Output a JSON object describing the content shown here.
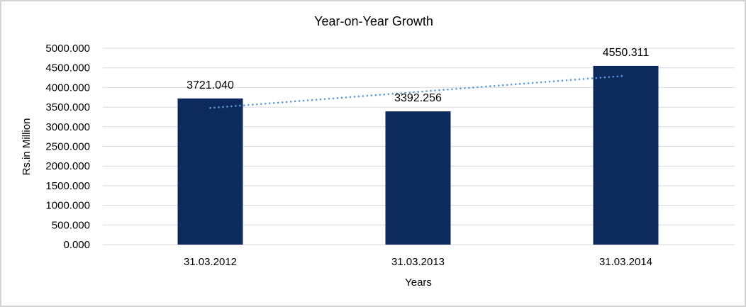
{
  "frame": {
    "background": "#FFFFFF",
    "border_color": "#D3D3D3"
  },
  "chart_data": {
    "type": "bar",
    "title": "Year-on-Year Growth",
    "xlabel": "Years",
    "ylabel": "Rs.in Million",
    "categories": [
      "31.03.2012",
      "31.03.2013",
      "31.03.2014"
    ],
    "values": [
      3721.04,
      3392.256,
      4550.311
    ],
    "data_labels": [
      "3721.040",
      "3392.256",
      "4550.311"
    ],
    "ylim": [
      0,
      5000
    ],
    "ytick_step": 500,
    "ytick_labels": [
      "0.000",
      "500.000",
      "1000.000",
      "1500.000",
      "2000.000",
      "2500.000",
      "3000.000",
      "3500.000",
      "4000.000",
      "4500.000",
      "5000.000"
    ],
    "grid": true,
    "legend": "none",
    "bar_color": "#0C2B5C",
    "gridline_color": "#D9D9D9",
    "text_color": "#000000",
    "trendline": {
      "type": "linear",
      "style": "dotted",
      "color": "#5B9BD5",
      "start_value": 3480,
      "end_value": 4300
    }
  }
}
